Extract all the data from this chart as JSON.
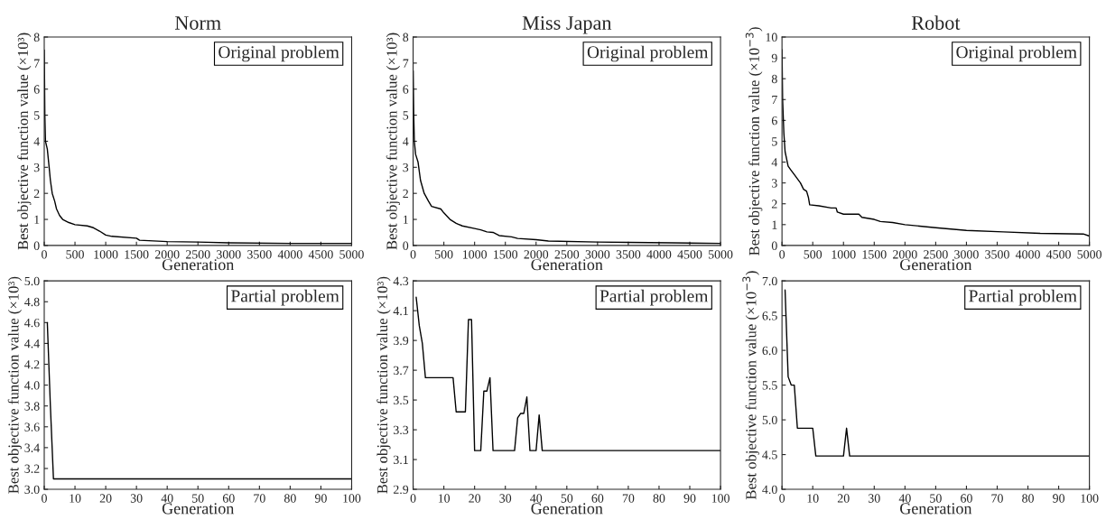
{
  "chart_data": [
    {
      "type": "line",
      "title": "Norm",
      "xlabel": "Generation",
      "ylabel": "Best objective function value (×10³)",
      "annotations": [
        "Original problem"
      ],
      "xlim": [
        0,
        5000
      ],
      "xticks": [
        0,
        500,
        1000,
        1500,
        2000,
        2500,
        3000,
        3500,
        4000,
        4500,
        5000
      ],
      "ylim": [
        0,
        8
      ],
      "yticks": [
        0,
        1,
        2,
        3,
        4,
        5,
        6,
        7,
        8
      ],
      "marker": "none",
      "series": [
        {
          "color": "#000000",
          "x": [
            0,
            5,
            10,
            20,
            50,
            80,
            100,
            130,
            170,
            200,
            250,
            300,
            400,
            500,
            700,
            800,
            900,
            1000,
            1100,
            1500,
            1550,
            2000,
            2500,
            3000,
            4000,
            5000
          ],
          "values": [
            7.5,
            6.4,
            5.0,
            4.0,
            3.7,
            3.0,
            2.5,
            2.0,
            1.7,
            1.4,
            1.15,
            1.0,
            0.88,
            0.8,
            0.75,
            0.68,
            0.55,
            0.4,
            0.35,
            0.28,
            0.2,
            0.15,
            0.13,
            0.1,
            0.08,
            0.08
          ]
        }
      ]
    },
    {
      "type": "line",
      "title": "Miss Japan",
      "xlabel": "Generation",
      "ylabel": "Best objective function value (×10³)",
      "annotations": [
        "Original problem"
      ],
      "xlim": [
        0,
        5000
      ],
      "xticks": [
        0,
        500,
        1000,
        1500,
        2000,
        2500,
        3000,
        3500,
        4000,
        4500,
        5000
      ],
      "ylim": [
        0,
        8
      ],
      "yticks": [
        0,
        1,
        2,
        3,
        4,
        5,
        6,
        7,
        8
      ],
      "marker": "none",
      "series": [
        {
          "color": "#000000",
          "x": [
            0,
            10,
            20,
            40,
            80,
            120,
            180,
            250,
            300,
            450,
            500,
            600,
            700,
            800,
            1000,
            1100,
            1200,
            1300,
            1400,
            1600,
            1700,
            2000,
            2200,
            3000,
            3500,
            4200,
            5000
          ],
          "values": [
            6.7,
            5.0,
            4.0,
            3.5,
            3.2,
            2.5,
            2.0,
            1.7,
            1.5,
            1.4,
            1.25,
            1.0,
            0.85,
            0.75,
            0.65,
            0.6,
            0.52,
            0.5,
            0.38,
            0.33,
            0.27,
            0.22,
            0.17,
            0.13,
            0.12,
            0.1,
            0.08
          ]
        }
      ]
    },
    {
      "type": "line",
      "title": "Robot",
      "xlabel": "Generation",
      "ylabel": "Best objective function value (×10$^{−3}$)",
      "annotations": [
        "Original problem"
      ],
      "xlim": [
        0,
        5000
      ],
      "xticks": [
        0,
        500,
        1000,
        1500,
        2000,
        2500,
        3000,
        3500,
        4000,
        4500,
        5000
      ],
      "ylim": [
        0,
        10
      ],
      "yticks": [
        0,
        1,
        2,
        3,
        4,
        5,
        6,
        7,
        8,
        9,
        10
      ],
      "marker": "none",
      "series": [
        {
          "color": "#000000",
          "x": [
            0,
            10,
            30,
            50,
            100,
            150,
            200,
            300,
            350,
            400,
            430,
            450,
            600,
            800,
            880,
            900,
            1000,
            1250,
            1300,
            1500,
            1600,
            1800,
            2000,
            2500,
            3000,
            3600,
            4200,
            4900,
            5000
          ],
          "values": [
            9.4,
            7.0,
            5.4,
            4.5,
            3.8,
            3.6,
            3.4,
            3.0,
            2.7,
            2.6,
            2.3,
            1.95,
            1.9,
            1.8,
            1.8,
            1.6,
            1.5,
            1.5,
            1.35,
            1.25,
            1.15,
            1.1,
            1.0,
            0.85,
            0.72,
            0.65,
            0.58,
            0.55,
            0.45
          ]
        }
      ]
    },
    {
      "type": "line",
      "xlabel": "Generation",
      "ylabel": "Best objective function value (×10³)",
      "annotations": [
        "Partial problem"
      ],
      "xlim": [
        0,
        100
      ],
      "xticks": [
        0,
        10,
        20,
        30,
        40,
        50,
        60,
        70,
        80,
        90,
        100
      ],
      "ylim": [
        3.0,
        5.0
      ],
      "yticks": [
        {
          "value": 3,
          "label": "3.0"
        },
        3.2,
        3.4,
        3.6,
        3.8,
        {
          "value": 4,
          "label": "4.0"
        },
        4.2,
        4.4,
        4.6,
        4.8,
        {
          "value": 5,
          "label": "5.0"
        }
      ],
      "marker": "none",
      "series": [
        {
          "color": "#000000",
          "x": [
            1,
            2,
            3,
            100
          ],
          "values": [
            4.6,
            3.8,
            3.1,
            3.1
          ]
        }
      ]
    },
    {
      "type": "line",
      "xlabel": "Generation",
      "ylabel": "Best objective function value (×10³)",
      "annotations": [
        "Partial problem"
      ],
      "xlim": [
        0,
        100
      ],
      "xticks": [
        0,
        10,
        20,
        30,
        40,
        50,
        60,
        70,
        80,
        90,
        100
      ],
      "ylim": [
        2.9,
        4.3
      ],
      "yticks": [
        2.9,
        3.1,
        3.3,
        3.5,
        3.7,
        3.9,
        4.1,
        4.3
      ],
      "marker": "none",
      "series": [
        {
          "color": "#000000",
          "x": [
            1,
            2,
            3,
            4,
            13,
            14,
            17,
            18,
            19,
            20,
            22,
            23,
            24,
            25,
            26,
            33,
            34,
            35,
            36,
            37,
            38,
            40,
            41,
            42,
            100
          ],
          "values": [
            4.19,
            4.0,
            3.88,
            3.65,
            3.65,
            3.42,
            3.42,
            4.04,
            4.04,
            3.16,
            3.16,
            3.56,
            3.56,
            3.65,
            3.16,
            3.16,
            3.38,
            3.41,
            3.41,
            3.52,
            3.16,
            3.16,
            3.4,
            3.16,
            3.16
          ]
        }
      ]
    },
    {
      "type": "line",
      "xlabel": "Generation",
      "ylabel": "Best objective function value (×10$^{−3}$)",
      "annotations": [
        "Partial problem"
      ],
      "xlim": [
        0,
        100
      ],
      "xticks": [
        0,
        10,
        20,
        30,
        40,
        50,
        60,
        70,
        80,
        90,
        100
      ],
      "ylim": [
        4.0,
        7.0
      ],
      "yticks": [
        {
          "value": 4,
          "label": "4.0"
        },
        4.5,
        {
          "value": 5,
          "label": "5.0"
        },
        5.5,
        {
          "value": 6,
          "label": "6.0"
        },
        6.5,
        {
          "value": 7,
          "label": "7.0"
        }
      ],
      "marker": "none",
      "series": [
        {
          "color": "#000000",
          "x": [
            1,
            2,
            3,
            4,
            5,
            10,
            11,
            20,
            21,
            22,
            100
          ],
          "values": [
            6.87,
            5.62,
            5.5,
            5.5,
            4.88,
            4.88,
            4.48,
            4.48,
            4.88,
            4.48,
            4.48
          ]
        }
      ]
    }
  ]
}
